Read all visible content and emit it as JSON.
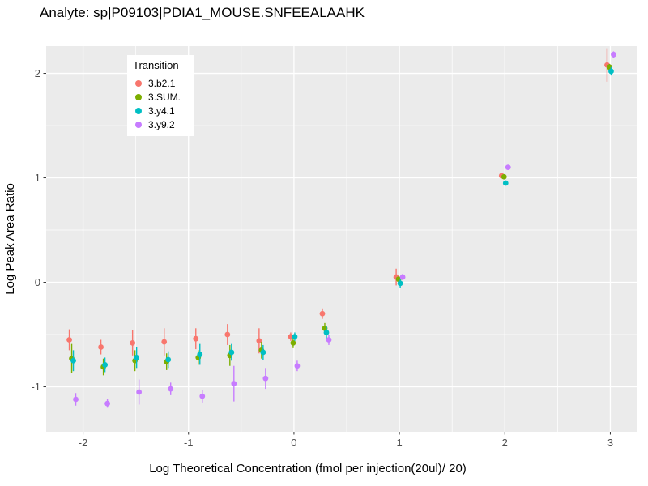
{
  "page": {
    "title": "Analyte: sp|P09103|PDIA1_MOUSE.SNFEEALAAHK"
  },
  "chart_data": {
    "type": "scatter",
    "title": "Analyte: sp|P09103|PDIA1_MOUSE.SNFEEALAAHK",
    "xlabel": "Log Theoretical Concentration (fmol per injection(20ul)/ 20)",
    "ylabel": "Log Peak Area Ratio",
    "legend_title": "Transition",
    "legend_position": "top-left-inside",
    "grid": true,
    "panel_bg": "#EBEBEB",
    "gridline_color": "#FFFFFF",
    "tick_label_color": "#4D4D4D",
    "xlim": [
      -2.35,
      3.25
    ],
    "ylim": [
      -1.43,
      2.26
    ],
    "x_ticks": [
      -2,
      -1,
      0,
      1,
      2,
      3
    ],
    "y_ticks": [
      -1,
      0,
      1,
      2
    ],
    "x": [
      -2.1,
      -1.8,
      -1.5,
      -1.2,
      -0.9,
      -0.6,
      -0.3,
      0,
      0.3,
      1,
      2,
      3
    ],
    "series": [
      {
        "name": "3.b2.1",
        "color": "#F8766D",
        "values": [
          -0.55,
          -0.62,
          -0.58,
          -0.57,
          -0.54,
          -0.5,
          -0.56,
          -0.52,
          -0.3,
          0.05,
          1.02,
          2.08
        ],
        "errors": [
          0.1,
          0.07,
          0.12,
          0.13,
          0.1,
          0.1,
          0.12,
          0.04,
          0.05,
          0.08,
          0.02,
          0.16
        ]
      },
      {
        "name": "3.SUM.",
        "color": "#7CAE00",
        "values": [
          -0.73,
          -0.81,
          -0.75,
          -0.76,
          -0.72,
          -0.7,
          -0.65,
          -0.58,
          -0.44,
          0.03,
          1.01,
          2.06
        ],
        "errors": [
          0.14,
          0.08,
          0.1,
          0.08,
          0.07,
          0.1,
          0.08,
          0.05,
          0.05,
          0.02,
          0.02,
          0.03
        ]
      },
      {
        "name": "3.y4.1",
        "color": "#00BFC4",
        "values": [
          -0.75,
          -0.79,
          -0.72,
          -0.74,
          -0.69,
          -0.67,
          -0.67,
          -0.52,
          -0.48,
          -0.01,
          0.95,
          2.02
        ],
        "errors": [
          0.1,
          0.07,
          0.1,
          0.08,
          0.1,
          0.08,
          0.07,
          0.04,
          0.06,
          0.04,
          0.02,
          0.04
        ]
      },
      {
        "name": "3.y9.2",
        "color": "#C77CFF",
        "values": [
          -1.12,
          -1.16,
          -1.05,
          -1.02,
          -1.09,
          -0.97,
          -0.92,
          -0.8,
          -0.55,
          0.05,
          1.1,
          2.18
        ],
        "errors": [
          0.06,
          0.04,
          0.12,
          0.06,
          0.06,
          0.17,
          0.1,
          0.05,
          0.05,
          0.03,
          0.02,
          0.03
        ]
      }
    ]
  }
}
